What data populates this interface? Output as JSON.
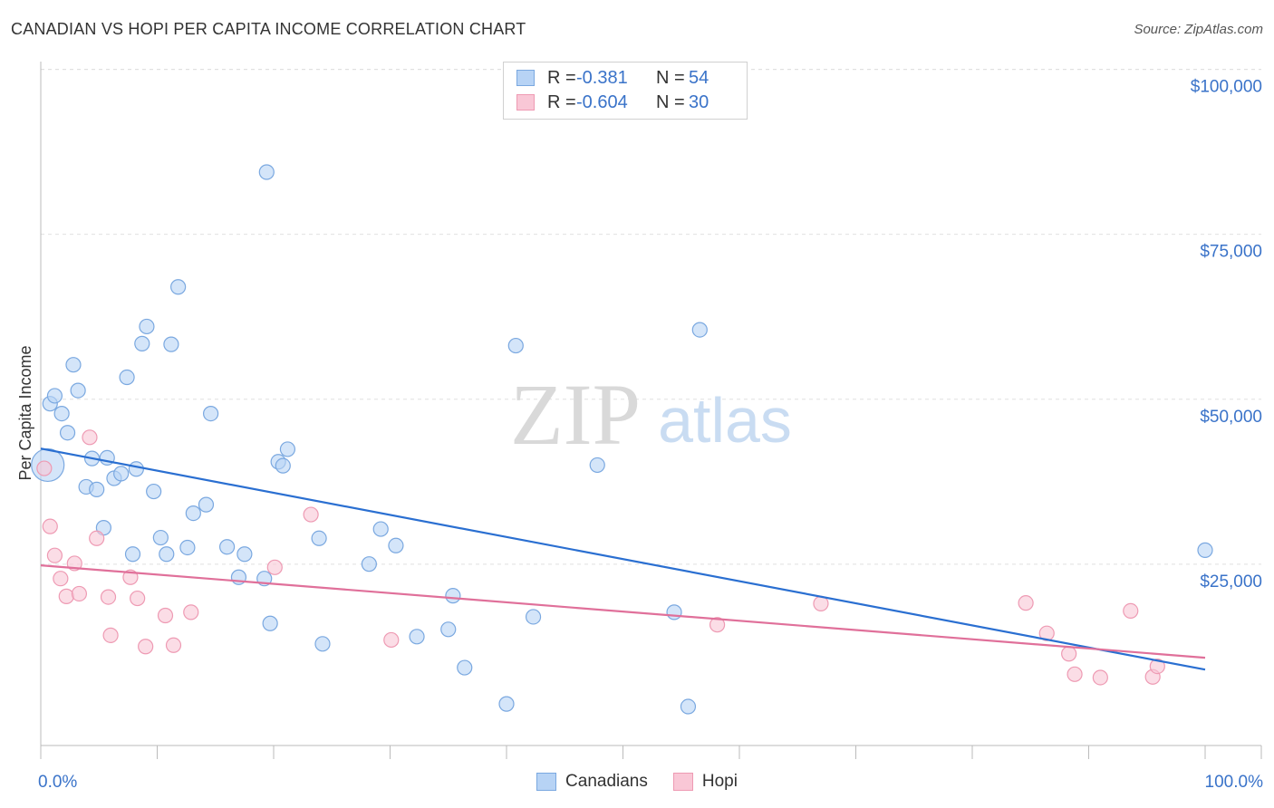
{
  "header": {
    "title": "CANADIAN VS HOPI PER CAPITA INCOME CORRELATION CHART",
    "source": "Source: ZipAtlas.com"
  },
  "watermark": {
    "zip": "ZIP",
    "atlas": "atlas"
  },
  "legend": {
    "series": [
      {
        "name": "Canadians",
        "r_label": "R =",
        "r_value": "-0.381",
        "n_label": "N =",
        "n_value": "54",
        "fill": "#b7d3f5",
        "stroke": "#7aa8e0",
        "value_color": "#3a73c9"
      },
      {
        "name": "Hopi",
        "r_label": "R =",
        "r_value": "-0.604",
        "n_label": "N =",
        "n_value": "30",
        "fill": "#f9c7d6",
        "stroke": "#ee9ab3",
        "value_color": "#3a73c9"
      }
    ]
  },
  "colors": {
    "canadians_line": "#2a6fd1",
    "hopi_line": "#e0709a",
    "tick_label": "#3a73c9",
    "grid": "#e0e0e0"
  },
  "chart_data": {
    "type": "scatter",
    "title": "CANADIAN VS HOPI PER CAPITA INCOME CORRELATION CHART",
    "xlabel": "",
    "ylabel": "Per Capita Income",
    "xlim": [
      0,
      100
    ],
    "ylim": [
      0,
      102000
    ],
    "x_tick_labels": [
      {
        "value": 0,
        "label": "0.0%"
      },
      {
        "value": 100,
        "label": "100.0%"
      }
    ],
    "y_ticks": [
      {
        "value": 25000,
        "label": "$25,000"
      },
      {
        "value": 50000,
        "label": "$50,000"
      },
      {
        "value": 75000,
        "label": "$75,000"
      },
      {
        "value": 100000,
        "label": "$100,000"
      }
    ],
    "grid": true,
    "series": [
      {
        "name": "Canadians",
        "trend": {
          "x": [
            0,
            100
          ],
          "y": [
            45000,
            11500
          ]
        },
        "points": [
          {
            "x": 0.6,
            "y": 42500,
            "big": true
          },
          {
            "x": 0.8,
            "y": 51800
          },
          {
            "x": 1.2,
            "y": 53000
          },
          {
            "x": 1.8,
            "y": 50300
          },
          {
            "x": 2.3,
            "y": 47400
          },
          {
            "x": 2.8,
            "y": 57700
          },
          {
            "x": 3.2,
            "y": 53800
          },
          {
            "x": 3.9,
            "y": 39200
          },
          {
            "x": 4.4,
            "y": 43500
          },
          {
            "x": 4.8,
            "y": 38800
          },
          {
            "x": 5.4,
            "y": 33000
          },
          {
            "x": 5.7,
            "y": 43600
          },
          {
            "x": 6.3,
            "y": 40500
          },
          {
            "x": 6.9,
            "y": 41200
          },
          {
            "x": 7.4,
            "y": 55800
          },
          {
            "x": 7.9,
            "y": 29000
          },
          {
            "x": 8.2,
            "y": 41900
          },
          {
            "x": 8.7,
            "y": 60900
          },
          {
            "x": 9.1,
            "y": 63500
          },
          {
            "x": 9.7,
            "y": 38500
          },
          {
            "x": 10.3,
            "y": 31500
          },
          {
            "x": 10.8,
            "y": 29000
          },
          {
            "x": 11.2,
            "y": 60800
          },
          {
            "x": 11.8,
            "y": 69500
          },
          {
            "x": 12.6,
            "y": 30000
          },
          {
            "x": 13.1,
            "y": 35200
          },
          {
            "x": 14.2,
            "y": 36500
          },
          {
            "x": 14.6,
            "y": 50300
          },
          {
            "x": 16.0,
            "y": 30100
          },
          {
            "x": 17.0,
            "y": 25500
          },
          {
            "x": 17.5,
            "y": 29000
          },
          {
            "x": 19.2,
            "y": 25300
          },
          {
            "x": 19.4,
            "y": 86900
          },
          {
            "x": 19.7,
            "y": 18500
          },
          {
            "x": 20.4,
            "y": 43000
          },
          {
            "x": 20.8,
            "y": 42400
          },
          {
            "x": 21.2,
            "y": 44900
          },
          {
            "x": 23.9,
            "y": 31400
          },
          {
            "x": 24.2,
            "y": 15400
          },
          {
            "x": 28.2,
            "y": 27500
          },
          {
            "x": 29.2,
            "y": 32800
          },
          {
            "x": 30.5,
            "y": 30300
          },
          {
            "x": 32.3,
            "y": 16500
          },
          {
            "x": 35.0,
            "y": 17600
          },
          {
            "x": 35.4,
            "y": 22700
          },
          {
            "x": 36.4,
            "y": 11800
          },
          {
            "x": 40.0,
            "y": 6300
          },
          {
            "x": 40.8,
            "y": 60600
          },
          {
            "x": 42.3,
            "y": 19500
          },
          {
            "x": 47.8,
            "y": 42500
          },
          {
            "x": 54.4,
            "y": 20200
          },
          {
            "x": 55.6,
            "y": 5900
          },
          {
            "x": 56.6,
            "y": 63000
          },
          {
            "x": 100.0,
            "y": 29600
          }
        ]
      },
      {
        "name": "Hopi",
        "trend": {
          "x": [
            0,
            100
          ],
          "y": [
            27300,
            13300
          ]
        },
        "points": [
          {
            "x": 0.3,
            "y": 42000
          },
          {
            "x": 0.8,
            "y": 33200
          },
          {
            "x": 1.2,
            "y": 28800
          },
          {
            "x": 1.7,
            "y": 25300
          },
          {
            "x": 2.2,
            "y": 22600
          },
          {
            "x": 2.9,
            "y": 27600
          },
          {
            "x": 3.3,
            "y": 23000
          },
          {
            "x": 4.2,
            "y": 46700
          },
          {
            "x": 4.8,
            "y": 31400
          },
          {
            "x": 5.8,
            "y": 22500
          },
          {
            "x": 6.0,
            "y": 16700
          },
          {
            "x": 7.7,
            "y": 25500
          },
          {
            "x": 8.3,
            "y": 22300
          },
          {
            "x": 9.0,
            "y": 15000
          },
          {
            "x": 10.7,
            "y": 19700
          },
          {
            "x": 11.4,
            "y": 15200
          },
          {
            "x": 12.9,
            "y": 20200
          },
          {
            "x": 20.1,
            "y": 27000
          },
          {
            "x": 23.2,
            "y": 35000
          },
          {
            "x": 30.1,
            "y": 16000
          },
          {
            "x": 58.1,
            "y": 18300
          },
          {
            "x": 67.0,
            "y": 21500
          },
          {
            "x": 84.6,
            "y": 21600
          },
          {
            "x": 86.4,
            "y": 17000
          },
          {
            "x": 88.3,
            "y": 13900
          },
          {
            "x": 88.8,
            "y": 10800
          },
          {
            "x": 91.0,
            "y": 10300
          },
          {
            "x": 93.6,
            "y": 20400
          },
          {
            "x": 95.5,
            "y": 10400
          },
          {
            "x": 95.9,
            "y": 12000
          }
        ]
      }
    ]
  }
}
